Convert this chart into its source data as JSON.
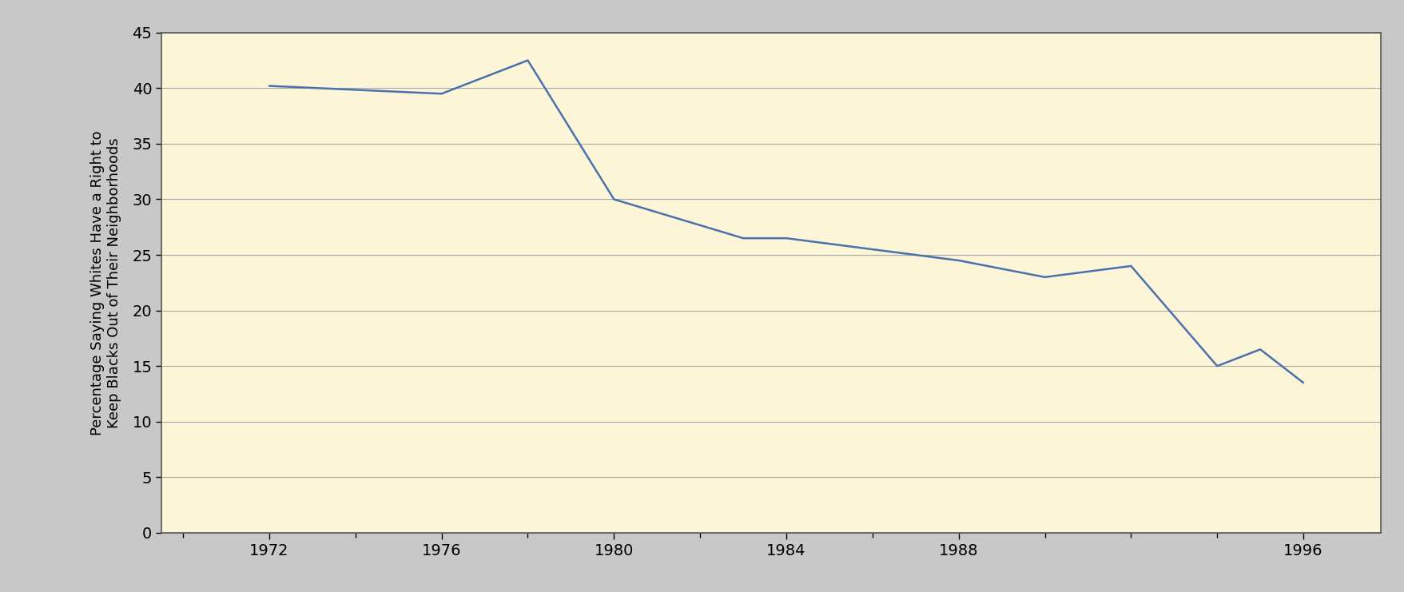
{
  "years": [
    1972,
    1976,
    1978,
    1980,
    1983,
    1984,
    1985,
    1986,
    1988,
    1990,
    1992,
    1994,
    1995,
    1996
  ],
  "values": [
    40.2,
    39.5,
    42.5,
    30.0,
    26.5,
    26.5,
    26.0,
    25.5,
    24.5,
    23.0,
    24.0,
    15.0,
    16.5,
    13.5
  ],
  "line_color": "#4a72aa",
  "background_color": "#fdf5d8",
  "outer_background": "#c8c8c8",
  "ylabel_line1": "Percentage Saying Whites Have a Right to",
  "ylabel_line2": "Keep Blacks Out of Their Neighborhoods",
  "ylim": [
    0,
    45
  ],
  "yticks": [
    0,
    5,
    10,
    15,
    20,
    25,
    30,
    35,
    40,
    45
  ],
  "xtick_labels": [
    "1972",
    "1976",
    "1980",
    "1984",
    "1988",
    "",
    "",
    "1996"
  ],
  "xtick_positions": [
    1972,
    1976,
    1980,
    1984,
    1988,
    1990,
    1992,
    1996
  ],
  "grid_color": "#aaaaaa",
  "line_width": 1.8,
  "spine_color": "#555555",
  "tick_label_fontsize": 14,
  "ylabel_fontsize": 13
}
